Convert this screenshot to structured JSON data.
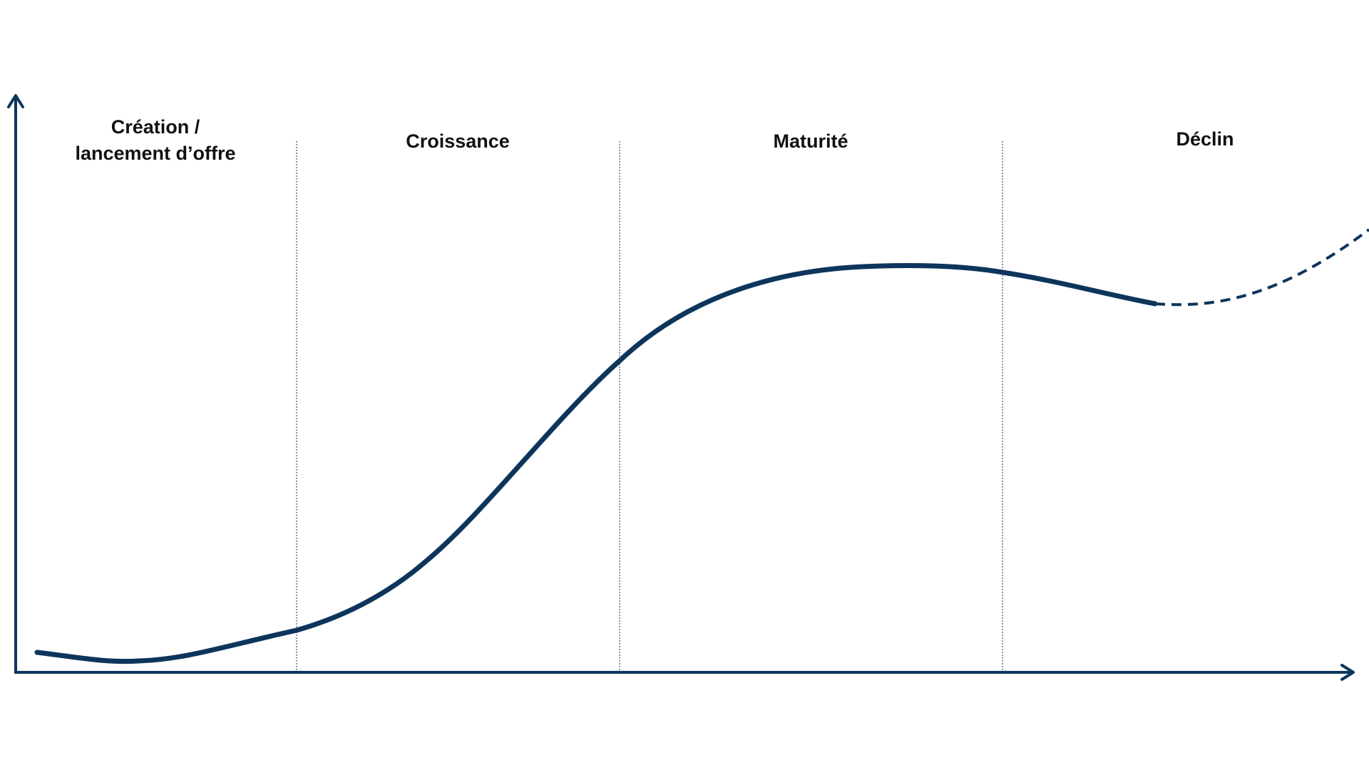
{
  "diagram": {
    "type": "product-lifecycle-curve",
    "colors": {
      "curve": "#0d355c",
      "axis": "#0d355c",
      "divider": "#5a7a9c",
      "text": "#111111",
      "background": "#ffffff"
    },
    "phases": [
      {
        "label_line1": "Création /",
        "label_line2": "lancement d’offre"
      },
      {
        "label_line1": "Croissance"
      },
      {
        "label_line1": "Maturité"
      },
      {
        "label_line1": "Déclin"
      }
    ],
    "curve": {
      "solid_segment": "actual",
      "dashed_segment": "projection"
    }
  }
}
